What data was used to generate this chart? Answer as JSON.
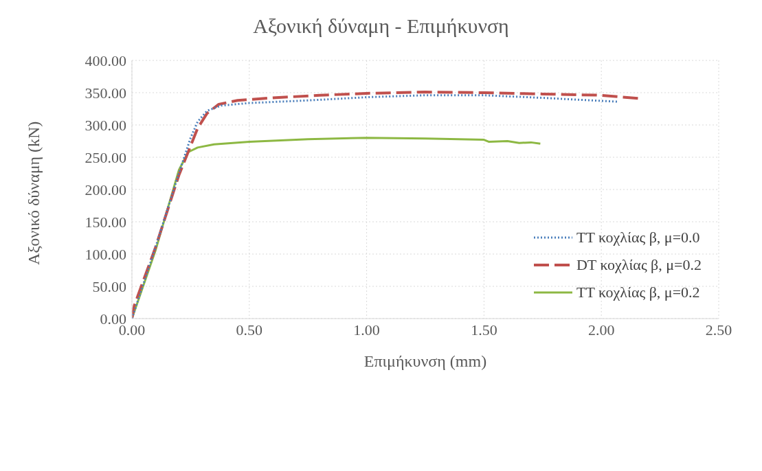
{
  "chart_data": {
    "type": "line",
    "title": "Αξονική δύναμη - Επιμήκυνση",
    "xlabel": "Επιμήκυνση (mm)",
    "ylabel": "Αξονικό δύναμη (kN)",
    "xlim": [
      0,
      2.5
    ],
    "xticks": [
      {
        "value": 0,
        "label": "0.00"
      },
      {
        "value": 0.5,
        "label": "0.50"
      },
      {
        "value": 1,
        "label": "1.00"
      },
      {
        "value": 1.5,
        "label": "1.50"
      },
      {
        "value": 2,
        "label": "2.00"
      },
      {
        "value": 2.5,
        "label": "2.50"
      }
    ],
    "ylim": [
      0,
      400
    ],
    "yticks": [
      {
        "value": 0,
        "label": "0.00"
      },
      {
        "value": 50,
        "label": "50.00"
      },
      {
        "value": 100,
        "label": "100.00"
      },
      {
        "value": 150,
        "label": "150.00"
      },
      {
        "value": 200,
        "label": "200.00"
      },
      {
        "value": 250,
        "label": "250.00"
      },
      {
        "value": 300,
        "label": "300.00"
      },
      {
        "value": 350,
        "label": "350.00"
      },
      {
        "value": 400,
        "label": "400.00"
      }
    ],
    "grid": true,
    "legend": "bottom right",
    "marker": "none",
    "series": [
      {
        "name": "TT κοχλίας β, μ=0.0",
        "color": "#4a7ebb",
        "line_style": "dotted",
        "x": [
          0,
          0.1,
          0.2,
          0.25,
          0.28,
          0.32,
          0.38,
          0.5,
          0.75,
          1.0,
          1.25,
          1.5,
          1.75,
          2.07
        ],
        "values": [
          0,
          110,
          225,
          280,
          305,
          322,
          330,
          334,
          338,
          343,
          346,
          346,
          342,
          336
        ]
      },
      {
        "name": "DT κοχλίας β, μ=0.2",
        "color": "#c0504d",
        "line_style": "dashed",
        "x": [
          0,
          0.01,
          0.1,
          0.2,
          0.28,
          0.32,
          0.37,
          0.45,
          0.6,
          0.8,
          1.0,
          1.25,
          1.5,
          1.75,
          2.0,
          2.16
        ],
        "values": [
          0,
          20,
          110,
          222,
          295,
          318,
          332,
          338,
          342,
          346,
          349,
          351,
          350,
          348,
          346,
          341
        ]
      },
      {
        "name": "TT κοχλίας β, μ=0.2",
        "color": "#8db843",
        "line_style": "solid",
        "x": [
          0,
          0.1,
          0.2,
          0.24,
          0.28,
          0.35,
          0.5,
          0.75,
          1.0,
          1.25,
          1.5,
          1.52,
          1.6,
          1.65,
          1.7,
          1.74
        ],
        "values": [
          0,
          105,
          230,
          258,
          265,
          270,
          274,
          278,
          280,
          279,
          277,
          274,
          275,
          272,
          273,
          271
        ]
      }
    ]
  }
}
